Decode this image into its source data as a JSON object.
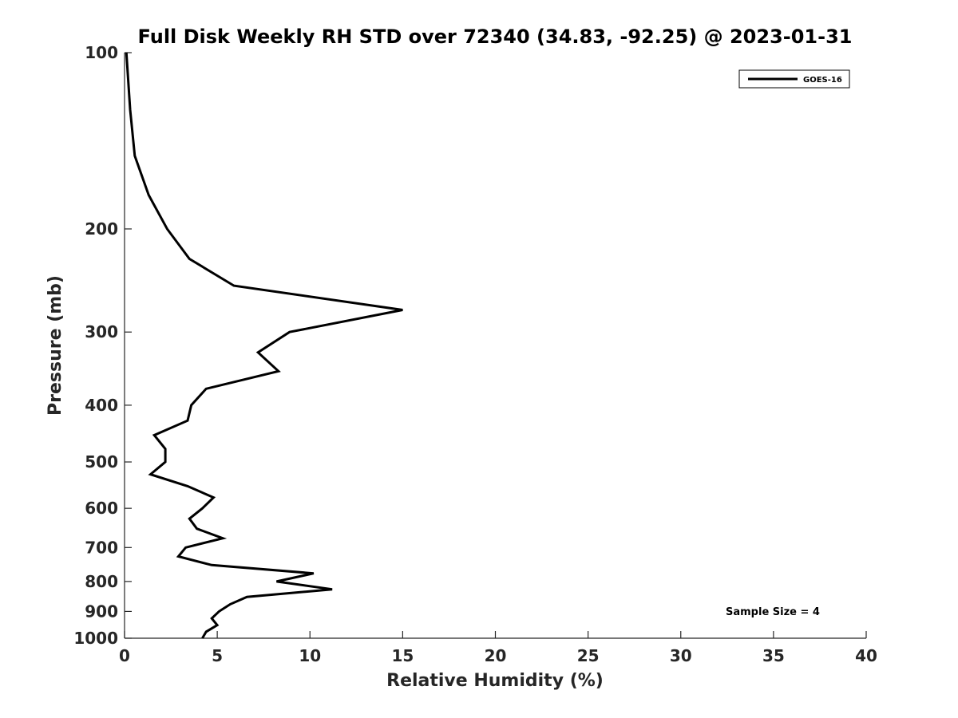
{
  "chart_data": {
    "type": "line",
    "title": "Full Disk Weekly RH STD over 72340 (34.83, -92.25) @ 2023-01-31",
    "xlabel": "Relative Humidity (%)",
    "ylabel": "Pressure (mb)",
    "xlim": [
      0,
      40
    ],
    "ylim": [
      100,
      1000
    ],
    "y_scale": "log",
    "y_reversed": true,
    "x_ticks": [
      0,
      5,
      10,
      15,
      20,
      25,
      30,
      35,
      40
    ],
    "y_ticks": [
      100,
      200,
      300,
      400,
      500,
      600,
      700,
      800,
      900,
      1000
    ],
    "grid": false,
    "legend_position": "top-right",
    "series": [
      {
        "name": "GOES-16",
        "color": "#000000",
        "points": [
          [
            0.1,
            100
          ],
          [
            0.3,
            125
          ],
          [
            0.55,
            150
          ],
          [
            1.3,
            175
          ],
          [
            2.3,
            200
          ],
          [
            3.5,
            225
          ],
          [
            5.9,
            250
          ],
          [
            15.0,
            275
          ],
          [
            8.9,
            300
          ],
          [
            7.2,
            325
          ],
          [
            8.3,
            350
          ],
          [
            4.4,
            375
          ],
          [
            3.6,
            400
          ],
          [
            3.4,
            425
          ],
          [
            1.6,
            450
          ],
          [
            2.2,
            475
          ],
          [
            2.2,
            500
          ],
          [
            1.4,
            525
          ],
          [
            3.4,
            550
          ],
          [
            4.8,
            575
          ],
          [
            4.2,
            600
          ],
          [
            3.5,
            625
          ],
          [
            3.9,
            650
          ],
          [
            5.3,
            675
          ],
          [
            3.3,
            700
          ],
          [
            2.9,
            725
          ],
          [
            4.7,
            750
          ],
          [
            10.2,
            775
          ],
          [
            8.2,
            800
          ],
          [
            11.2,
            825
          ],
          [
            6.6,
            850
          ],
          [
            5.7,
            875
          ],
          [
            5.1,
            900
          ],
          [
            4.7,
            925
          ],
          [
            5.0,
            950
          ],
          [
            4.4,
            975
          ],
          [
            4.2,
            1000
          ]
        ]
      }
    ],
    "annotations": [
      "Sample Size = 4"
    ]
  }
}
